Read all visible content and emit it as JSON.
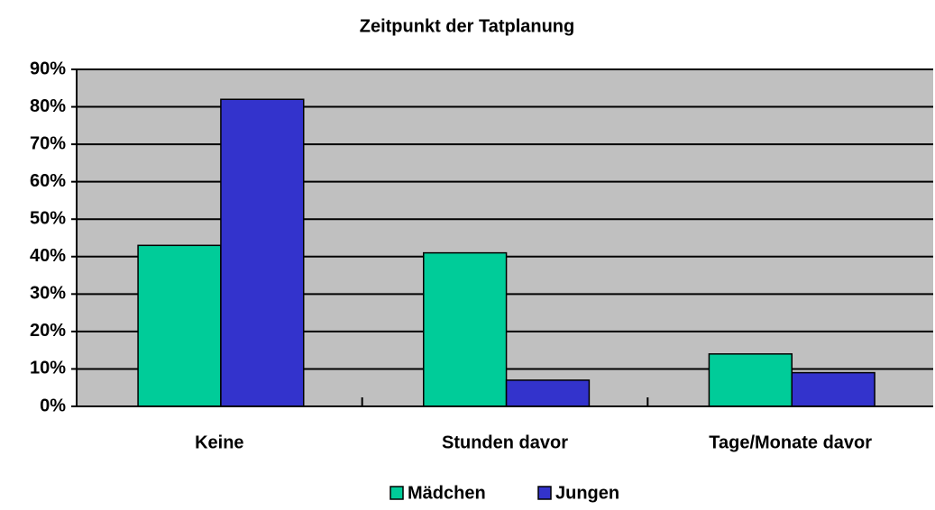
{
  "chart_data": {
    "type": "bar",
    "title": "Zeitpunkt der Tatplanung",
    "categories": [
      "Keine",
      "Stunden davor",
      "Tage/Monate davor"
    ],
    "series": [
      {
        "name": "Mädchen",
        "color": "#00cc99",
        "values": [
          43,
          41,
          14
        ]
      },
      {
        "name": "Jungen",
        "color": "#3333cc",
        "values": [
          82,
          7,
          9
        ]
      }
    ],
    "ylim": [
      0,
      90
    ],
    "yticks": [
      {
        "value": 0,
        "label": "0%"
      },
      {
        "value": 10,
        "label": "10%"
      },
      {
        "value": 20,
        "label": "20%"
      },
      {
        "value": 30,
        "label": "30%"
      },
      {
        "value": 40,
        "label": "40%"
      },
      {
        "value": 50,
        "label": "50%"
      },
      {
        "value": 60,
        "label": "60%"
      },
      {
        "value": 70,
        "label": "70%"
      },
      {
        "value": 80,
        "label": "80%"
      },
      {
        "value": 90,
        "label": "90%"
      }
    ],
    "grid": true,
    "plot_background": "#c0c0c0",
    "legend": "bottom"
  }
}
